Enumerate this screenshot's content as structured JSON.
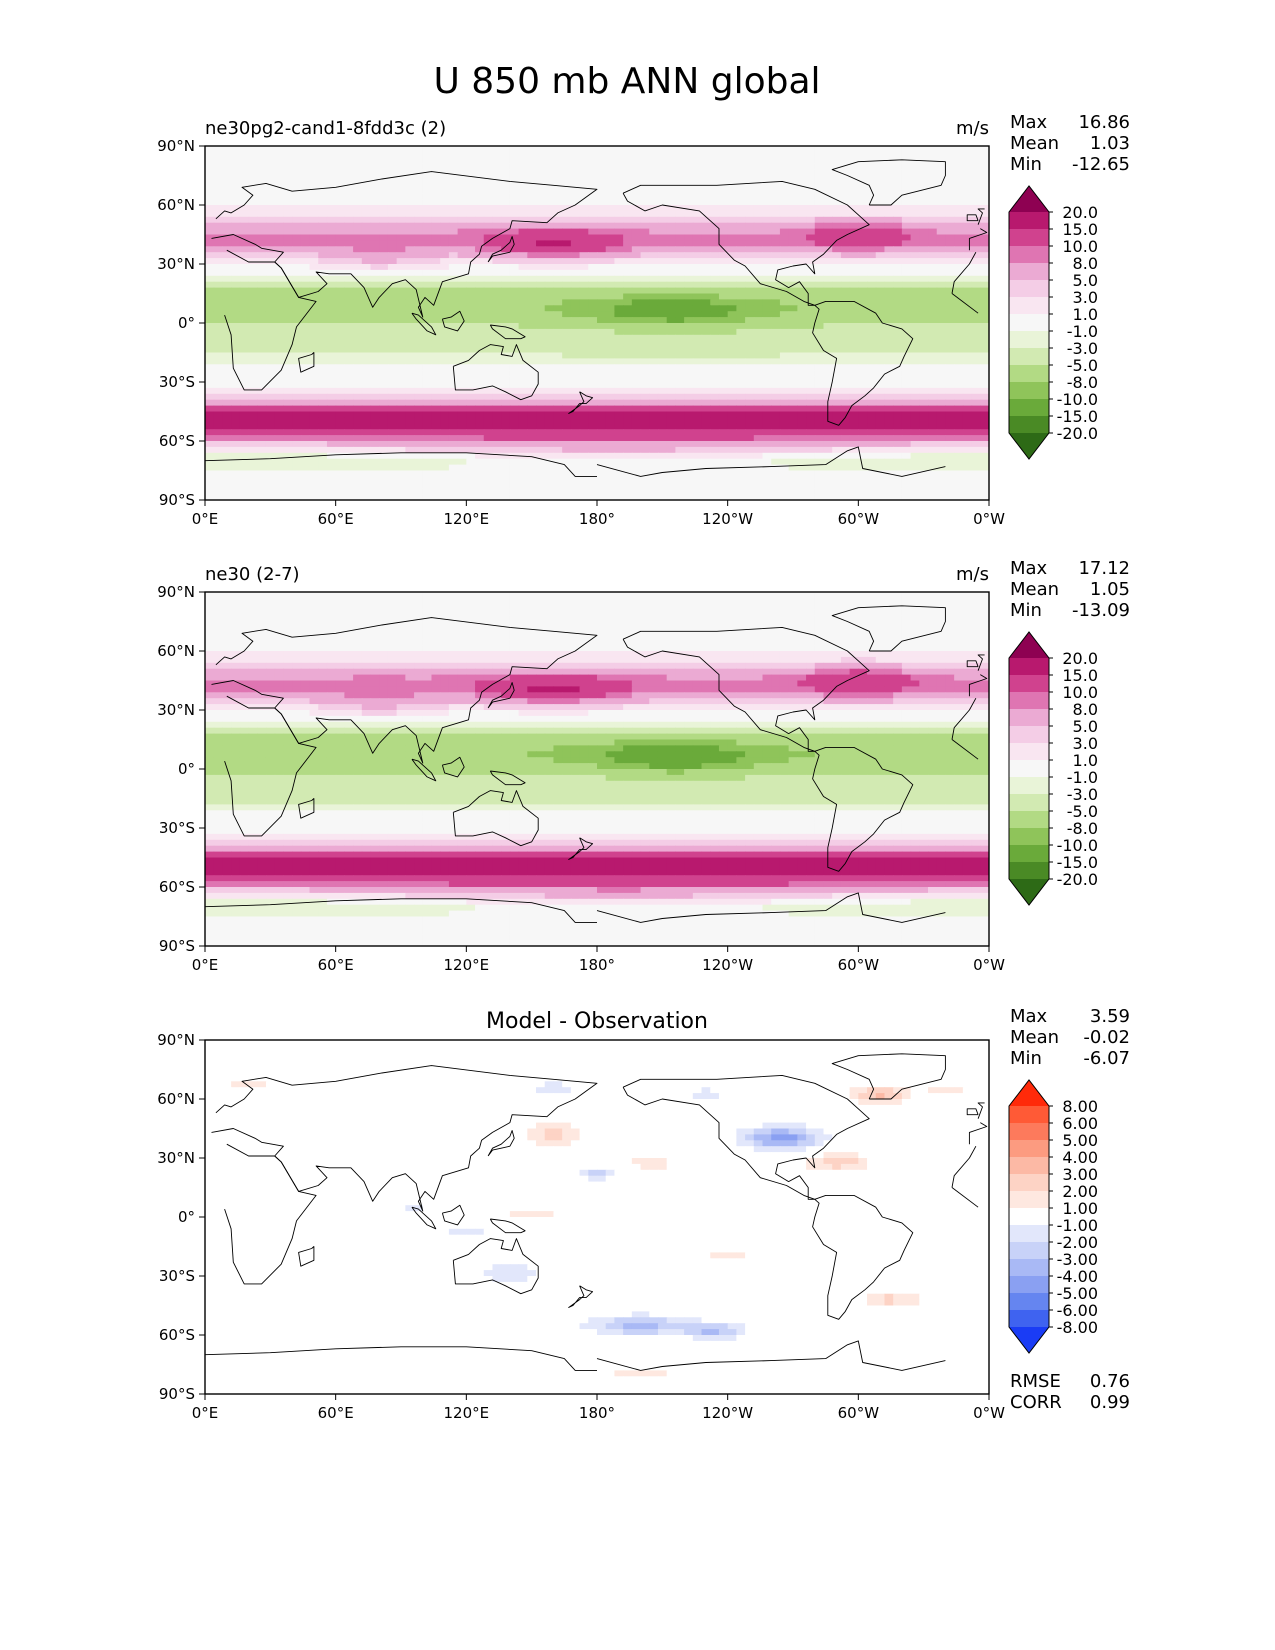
{
  "figure_title": "U 850 mb ANN global",
  "chart_data": [
    {
      "type": "heatmap",
      "title": "ne30pg2-cand1-8fdd3c (2)",
      "units": "m/s",
      "stats": [
        {
          "label": "Max",
          "value": "16.86"
        },
        {
          "label": "Mean",
          "value": "1.03"
        },
        {
          "label": "Min",
          "value": "-12.65"
        }
      ],
      "x_ticks": [
        "0°E",
        "60°E",
        "120°E",
        "180°",
        "120°W",
        "60°W",
        "0°W"
      ],
      "y_ticks": [
        "90°N",
        "60°N",
        "30°N",
        "0°",
        "30°S",
        "60°S",
        "90°S"
      ],
      "xlim": [
        0,
        360
      ],
      "ylim": [
        -90,
        90
      ],
      "colorbar_levels": [
        "20.0",
        "15.0",
        "10.0",
        "8.0",
        "5.0",
        "3.0",
        "1.0",
        "-1.0",
        "-3.0",
        "-5.0",
        "-8.0",
        "-10.0",
        "-15.0",
        "-20.0"
      ],
      "colorbar_colors": [
        "#8e0152",
        "#b8196e",
        "#d0428e",
        "#df75b2",
        "#ebaad3",
        "#f4cde6",
        "#f9e6f1",
        "#f7f7f7",
        "#e9f4d8",
        "#d2eab2",
        "#b2da84",
        "#8fc45a",
        "#6aaa3a",
        "#4a8a25",
        "#2d6a16"
      ],
      "annotations": []
    },
    {
      "type": "heatmap",
      "title": "ne30 (2-7)",
      "units": "m/s",
      "stats": [
        {
          "label": "Max",
          "value": "17.12"
        },
        {
          "label": "Mean",
          "value": "1.05"
        },
        {
          "label": "Min",
          "value": "-13.09"
        }
      ],
      "x_ticks": [
        "0°E",
        "60°E",
        "120°E",
        "180°",
        "120°W",
        "60°W",
        "0°W"
      ],
      "y_ticks": [
        "90°N",
        "60°N",
        "30°N",
        "0°",
        "30°S",
        "60°S",
        "90°S"
      ],
      "xlim": [
        0,
        360
      ],
      "ylim": [
        -90,
        90
      ],
      "colorbar_levels": [
        "20.0",
        "15.0",
        "10.0",
        "8.0",
        "5.0",
        "3.0",
        "1.0",
        "-1.0",
        "-3.0",
        "-5.0",
        "-8.0",
        "-10.0",
        "-15.0",
        "-20.0"
      ],
      "colorbar_colors": [
        "#8e0152",
        "#b8196e",
        "#d0428e",
        "#df75b2",
        "#ebaad3",
        "#f4cde6",
        "#f9e6f1",
        "#f7f7f7",
        "#e9f4d8",
        "#d2eab2",
        "#b2da84",
        "#8fc45a",
        "#6aaa3a",
        "#4a8a25",
        "#2d6a16"
      ],
      "annotations": []
    },
    {
      "type": "heatmap",
      "title": "Model - Observation",
      "units": "",
      "stats": [
        {
          "label": "Max",
          "value": "3.59"
        },
        {
          "label": "Mean",
          "value": "-0.02"
        },
        {
          "label": "Min",
          "value": "-6.07"
        }
      ],
      "x_ticks": [
        "0°E",
        "60°E",
        "120°E",
        "180°",
        "120°W",
        "60°W",
        "0°W"
      ],
      "y_ticks": [
        "90°N",
        "60°N",
        "30°N",
        "0°",
        "30°S",
        "60°S",
        "90°S"
      ],
      "xlim": [
        0,
        360
      ],
      "ylim": [
        -90,
        90
      ],
      "colorbar_levels": [
        "8.00",
        "6.00",
        "5.00",
        "4.00",
        "3.00",
        "2.00",
        "1.00",
        "-1.00",
        "-2.00",
        "-3.00",
        "-4.00",
        "-5.00",
        "-6.00",
        "-8.00"
      ],
      "colorbar_colors": [
        "#ff2a0a",
        "#ff5a36",
        "#fd7a5c",
        "#fc9b80",
        "#fcb9a5",
        "#fdd3c5",
        "#fee8e0",
        "#ffffff",
        "#e2e7fb",
        "#c8d2f8",
        "#a9b9f5",
        "#8aa0f2",
        "#6585f0",
        "#3f63f0",
        "#1a3cf5"
      ],
      "annotations": [
        {
          "label": "RMSE",
          "value": "0.76"
        },
        {
          "label": "CORR",
          "value": "0.99"
        }
      ]
    }
  ]
}
